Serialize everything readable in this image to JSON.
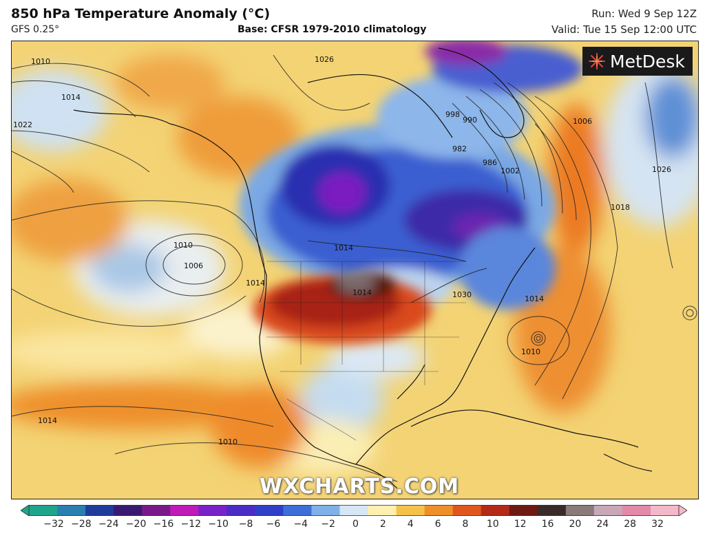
{
  "header": {
    "title": "850 hPa Temperature Anomaly (°C)",
    "subtitle": "GFS 0.25°",
    "base": "Base: CFSR 1979-2010 climatology",
    "run": "Run: Wed 9 Sep 12Z",
    "valid": "Valid: Tue 15 Sep 12:00 UTC"
  },
  "logo": {
    "text": "MetDesk",
    "icon": "metdesk-starburst-icon"
  },
  "watermark": "WXCHARTS.COM",
  "isobar_labels": [
    "1010",
    "1014",
    "1022",
    "1026",
    "1014",
    "1018",
    "1026",
    "1006",
    "1010",
    "1006",
    "1014",
    "1014",
    "1030",
    "1014",
    "1010",
    "1014",
    "1010",
    "998",
    "990",
    "986",
    "982",
    "1002"
  ],
  "colorbar": {
    "ticks": [
      "−32",
      "−28",
      "−24",
      "−20",
      "−16",
      "−12",
      "−10",
      "−8",
      "−6",
      "−4",
      "−2",
      "0",
      "2",
      "4",
      "6",
      "8",
      "10",
      "12",
      "16",
      "20",
      "24",
      "28",
      "32"
    ],
    "colors": [
      "#1fa58a",
      "#2a7fb0",
      "#203c9b",
      "#3a1a70",
      "#7a1a8a",
      "#c01ab8",
      "#7a22c8",
      "#4b2cc6",
      "#2f3fc8",
      "#3e6fd8",
      "#7fb0e8",
      "#d7e6f4",
      "#fff0b0",
      "#f4c24a",
      "#ef8f2a",
      "#e0571e",
      "#b52a16",
      "#6e1a12",
      "#3a2a2a",
      "#8a7a7a",
      "#c8a8b8",
      "#e38aa8",
      "#f5b8c8"
    ]
  }
}
